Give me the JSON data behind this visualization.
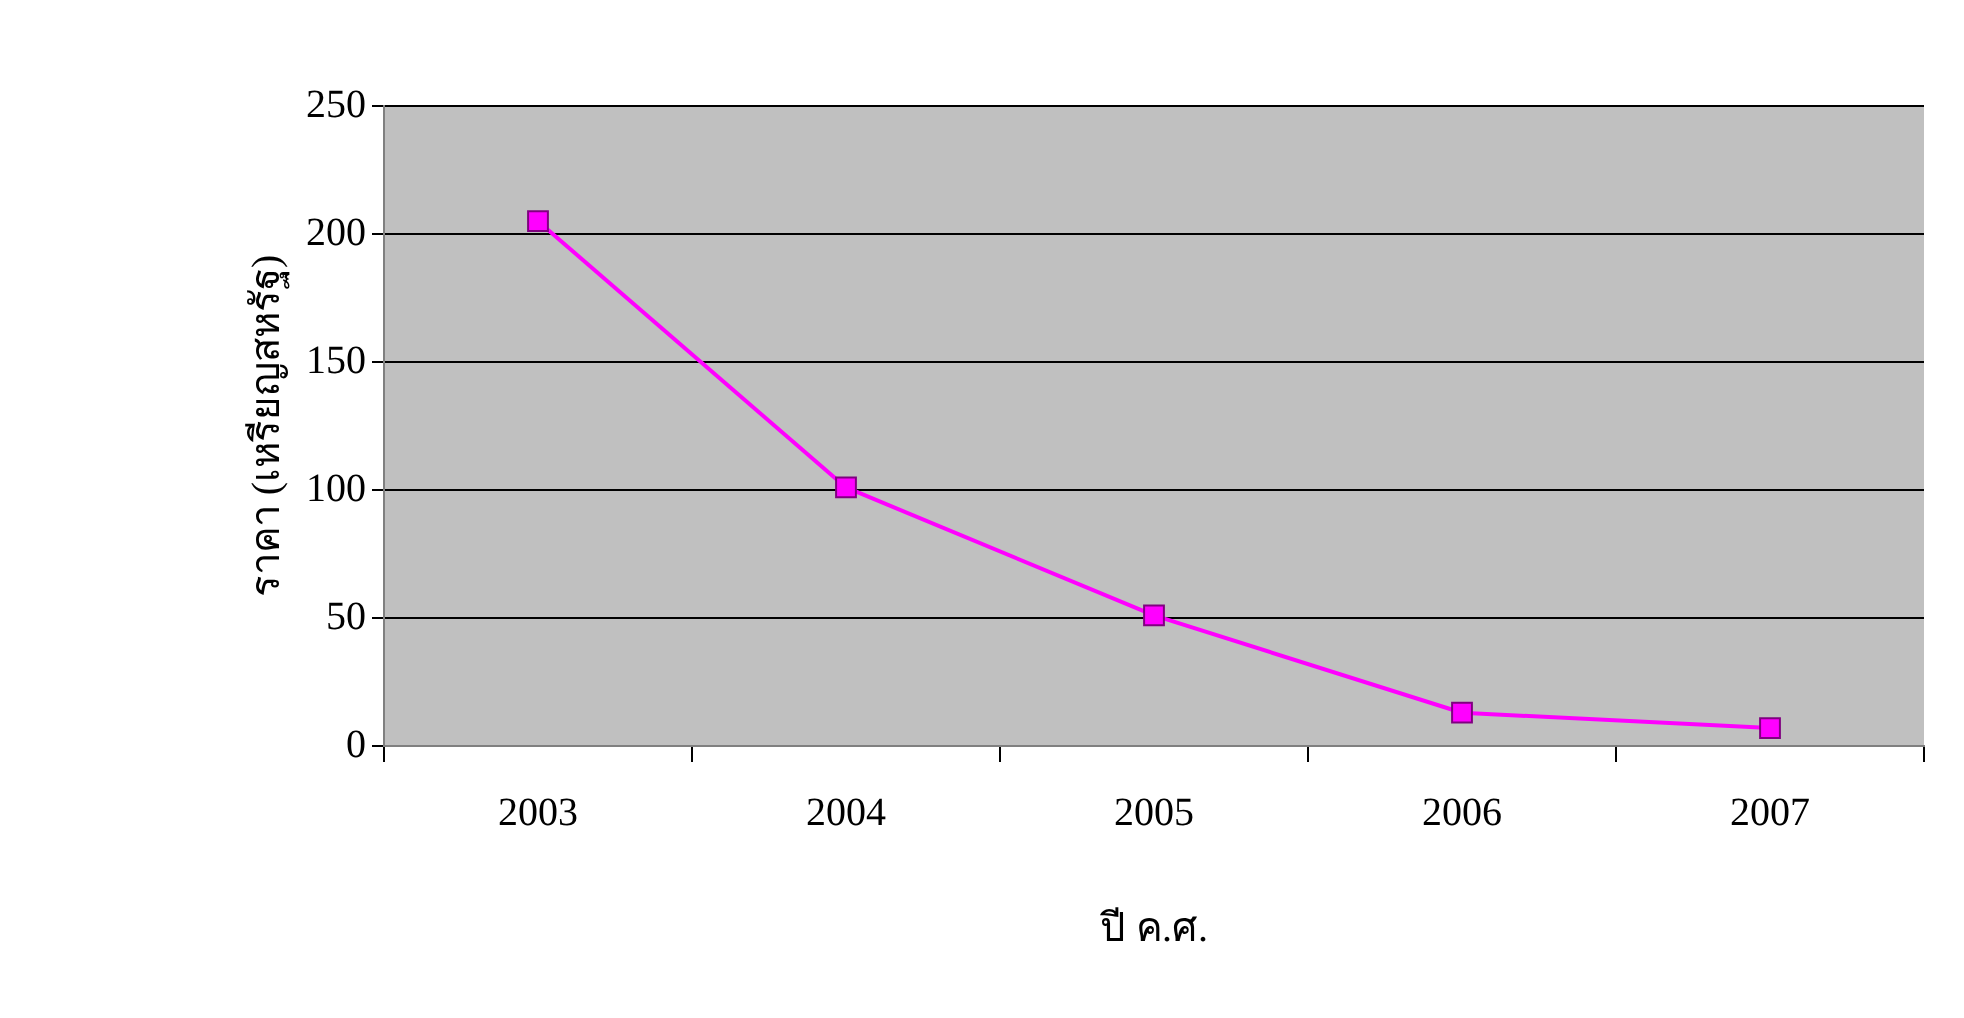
{
  "chart_data": {
    "type": "line",
    "xlabel": "ปี ค.ศ.",
    "ylabel": "ราคา (เหรียญสหรัฐ)",
    "categories": [
      "2003",
      "2004",
      "2005",
      "2006",
      "2007"
    ],
    "series": [
      {
        "color": "#ff00ff",
        "values": [
          205,
          101,
          51,
          13,
          7
        ]
      }
    ],
    "ylim": [
      0,
      250
    ],
    "yticks": [
      0,
      50,
      100,
      150,
      200,
      250
    ],
    "grid": "y",
    "legend": false,
    "marker": "square",
    "line_style": "solid"
  }
}
